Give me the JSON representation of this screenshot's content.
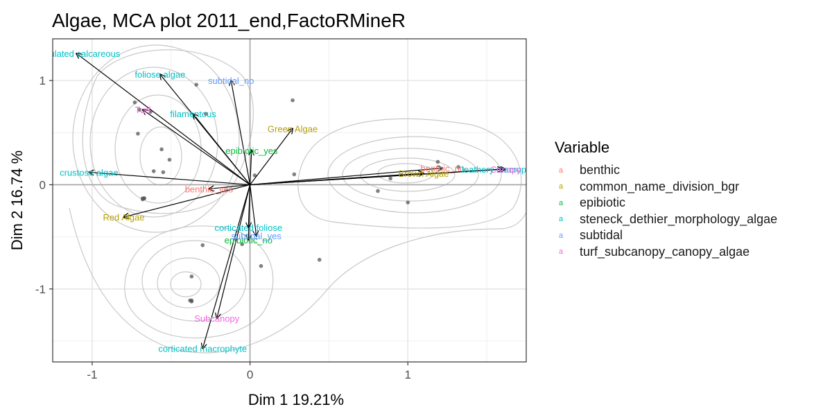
{
  "chart_data": {
    "type": "scatter",
    "title": "Algae, MCA plot 2011_end,FactoRMineR",
    "xlabel": "Dim 1  19.21%",
    "ylabel": "Dim 2 16.74 %",
    "xlim": [
      -1.25,
      1.75
    ],
    "ylim": [
      -1.7,
      1.4
    ],
    "x_ticks": [
      -1,
      0,
      1
    ],
    "y_ticks": [
      -1,
      0,
      1
    ],
    "grid": true,
    "legend_placement": "right",
    "legend_title": "Variable",
    "series_colors": {
      "benthic": "#F8766D",
      "common_name_division_bgr": "#B79F00",
      "epibiotic": "#00BA38",
      "steneck_dethier_morphology_algae": "#00BFC4",
      "subtidal": "#619CFF",
      "turf_subcanopy_canopy_algae": "#F564E3"
    },
    "legend": [
      "benthic",
      "common_name_division_bgr",
      "epibiotic",
      "steneck_dethier_morphology_algae",
      "subtidal",
      "turf_subcanopy_canopy_algae"
    ],
    "individuals": [
      {
        "x": -0.73,
        "y": 0.79
      },
      {
        "x": -0.7,
        "y": 0.72
      },
      {
        "x": -0.63,
        "y": 0.7
      },
      {
        "x": -0.71,
        "y": 0.49
      },
      {
        "x": -0.56,
        "y": 0.34
      },
      {
        "x": -0.51,
        "y": 0.24
      },
      {
        "x": -0.61,
        "y": 0.13
      },
      {
        "x": -0.55,
        "y": 0.12
      },
      {
        "x": -0.67,
        "y": -0.13
      },
      {
        "x": -0.68,
        "y": -0.13
      },
      {
        "x": -0.68,
        "y": -0.14
      },
      {
        "x": -0.67,
        "y": -0.13
      },
      {
        "x": -0.34,
        "y": 0.96
      },
      {
        "x": -0.28,
        "y": 0.68
      },
      {
        "x": 0.27,
        "y": 0.81
      },
      {
        "x": 0.03,
        "y": 0.09
      },
      {
        "x": 0.28,
        "y": 0.1
      },
      {
        "x": 0.81,
        "y": -0.06
      },
      {
        "x": 0.89,
        "y": 0.06
      },
      {
        "x": 1.0,
        "y": -0.17
      },
      {
        "x": 1.19,
        "y": 0.22
      },
      {
        "x": 1.32,
        "y": 0.17
      },
      {
        "x": -0.3,
        "y": -0.58
      },
      {
        "x": -0.05,
        "y": -0.57
      },
      {
        "x": 0.07,
        "y": -0.78
      },
      {
        "x": 0.44,
        "y": -0.72
      },
      {
        "x": -0.37,
        "y": -0.88
      },
      {
        "x": -0.37,
        "y": -1.11
      },
      {
        "x": -0.38,
        "y": -1.11
      },
      {
        "x": -0.37,
        "y": -1.12
      }
    ],
    "variables": [
      {
        "label": "benthic_no",
        "group": "benthic",
        "x": 1.22,
        "y": 0.16
      },
      {
        "label": "benthic_yes",
        "group": "benthic",
        "x": -0.26,
        "y": -0.04
      },
      {
        "label": "Brown Algae",
        "group": "common_name_division_bgr",
        "x": 1.1,
        "y": 0.11
      },
      {
        "label": "Green Algae",
        "group": "common_name_division_bgr",
        "x": 0.27,
        "y": 0.54
      },
      {
        "label": "Red Algae",
        "group": "common_name_division_bgr",
        "x": -0.8,
        "y": -0.31
      },
      {
        "label": "epibiotic_no",
        "group": "epibiotic",
        "x": -0.01,
        "y": -0.53
      },
      {
        "label": "epibiotic_yes",
        "group": "epibiotic",
        "x": 0.01,
        "y": 0.33
      },
      {
        "label": "articulated calcareous",
        "group": "steneck_dethier_morphology_algae",
        "x": -1.1,
        "y": 1.26
      },
      {
        "label": "leathery macrophyte",
        "group": "steneck_dethier_morphology_algae",
        "x": 1.6,
        "y": 0.15
      },
      {
        "label": "crustose algae",
        "group": "steneck_dethier_morphology_algae",
        "x": -1.02,
        "y": 0.12
      },
      {
        "label": "filamentous",
        "group": "steneck_dethier_morphology_algae",
        "x": -0.36,
        "y": 0.68
      },
      {
        "label": "foliose algae",
        "group": "steneck_dethier_morphology_algae",
        "x": -0.57,
        "y": 1.06
      },
      {
        "label": "corticated foliose",
        "group": "steneck_dethier_morphology_algae",
        "x": -0.01,
        "y": -0.41
      },
      {
        "label": "corticated macrophyte",
        "group": "steneck_dethier_morphology_algae",
        "x": -0.3,
        "y": -1.57
      },
      {
        "label": "subtidal_no",
        "group": "subtidal",
        "x": -0.12,
        "y": 1.0
      },
      {
        "label": "subtidal_yes",
        "group": "subtidal",
        "x": 0.04,
        "y": -0.49
      },
      {
        "label": "Turf",
        "group": "turf_subcanopy_canopy_algae",
        "x": -0.68,
        "y": 0.72
      },
      {
        "label": "Subcanopy",
        "group": "turf_subcanopy_canopy_algae",
        "x": -0.21,
        "y": -1.28
      },
      {
        "label": "Canopy",
        "group": "turf_subcanopy_canopy_algae",
        "x": 1.62,
        "y": 0.15
      }
    ]
  }
}
